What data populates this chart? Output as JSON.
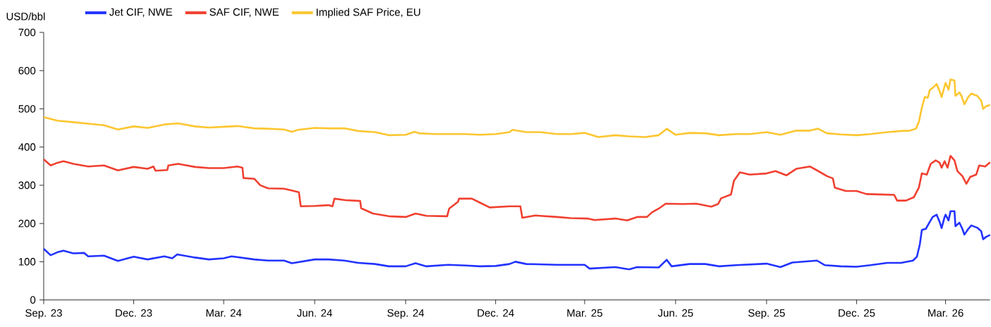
{
  "chart_data": {
    "type": "line",
    "ylabel": "USD/bbl",
    "legend": "top left",
    "xlim": [
      "2023-09-01",
      "2026-04-15"
    ],
    "ylim": [
      0,
      700
    ],
    "yticks": [
      0,
      100,
      200,
      300,
      400,
      500,
      600,
      700
    ],
    "xticks": [
      {
        "value": "2023-09-01",
        "label": "Sep. 23"
      },
      {
        "value": "2023-12-01",
        "label": "Dec. 23"
      },
      {
        "value": "2024-03-01",
        "label": "Mar. 24"
      },
      {
        "value": "2024-06-01",
        "label": "Jun. 24"
      },
      {
        "value": "2024-09-01",
        "label": "Sep. 24"
      },
      {
        "value": "2024-12-01",
        "label": "Dec. 24"
      },
      {
        "value": "2025-03-01",
        "label": "Mar. 25"
      },
      {
        "value": "2025-06-01",
        "label": "Jun. 25"
      },
      {
        "value": "2025-09-01",
        "label": "Sep. 25"
      },
      {
        "value": "2025-12-01",
        "label": "Dec. 25"
      },
      {
        "value": "2026-03-01",
        "label": "Mar. 26"
      }
    ],
    "series": [
      {
        "name": "Jet CIF, NWE",
        "color": "#2233ff",
        "x": [
          "2023-09-01",
          "2023-09-08",
          "2023-09-15",
          "2023-09-21",
          "2023-10-01",
          "2023-10-12",
          "2023-10-16",
          "2023-11-01",
          "2023-11-15",
          "2023-12-01",
          "2023-12-15",
          "2024-01-01",
          "2024-01-09",
          "2024-01-14",
          "2024-02-01",
          "2024-02-15",
          "2024-03-01",
          "2024-03-09",
          "2024-04-01",
          "2024-04-15",
          "2024-05-01",
          "2024-05-09",
          "2024-06-01",
          "2024-06-15",
          "2024-07-01",
          "2024-07-15",
          "2024-08-01",
          "2024-08-15",
          "2024-09-01",
          "2024-09-11",
          "2024-09-22",
          "2024-10-14",
          "2024-11-01",
          "2024-11-15",
          "2024-12-01",
          "2024-12-15",
          "2024-12-21",
          "2025-01-01",
          "2025-02-01",
          "2025-03-01",
          "2025-03-06",
          "2025-04-01",
          "2025-04-15",
          "2025-04-23",
          "2025-05-15",
          "2025-05-23",
          "2025-05-28",
          "2025-06-15",
          "2025-07-01",
          "2025-07-15",
          "2025-08-01",
          "2025-09-01",
          "2025-09-15",
          "2025-09-27",
          "2025-10-22",
          "2025-10-30",
          "2025-11-15",
          "2025-12-01",
          "2025-12-15",
          "2026-01-01",
          "2026-01-15",
          "2026-01-27",
          "2026-01-31",
          "2026-02-03",
          "2026-02-05",
          "2026-02-09",
          "2026-02-13",
          "2026-02-16",
          "2026-02-20",
          "2026-02-23",
          "2026-02-25",
          "2026-02-28",
          "2026-03-01",
          "2026-03-04",
          "2026-03-06",
          "2026-03-10",
          "2026-03-11",
          "2026-03-15",
          "2026-03-18",
          "2026-03-20",
          "2026-03-24",
          "2026-03-27",
          "2026-04-02",
          "2026-04-06",
          "2026-04-08",
          "2026-04-11",
          "2026-04-15"
        ],
        "values": [
          134,
          117,
          125,
          129,
          122,
          123,
          114,
          116,
          102,
          113,
          106,
          114,
          109,
          119,
          111,
          106,
          109,
          114,
          106,
          103,
          103,
          96,
          106,
          106,
          103,
          97,
          94,
          88,
          88,
          96,
          88,
          92,
          90,
          88,
          89,
          94,
          100,
          94,
          92,
          92,
          82,
          86,
          80,
          86,
          85,
          105,
          88,
          94,
          94,
          88,
          91,
          95,
          86,
          98,
          103,
          91,
          88,
          87,
          91,
          97,
          97,
          103,
          113,
          146,
          183,
          186,
          204,
          217,
          223,
          204,
          188,
          217,
          223,
          208,
          232,
          232,
          193,
          202,
          186,
          171,
          186,
          195,
          189,
          180,
          159,
          165,
          170
        ]
      },
      {
        "name": "SAF CIF, NWE",
        "color": "#f04030",
        "x": [
          "2023-09-01",
          "2023-09-08",
          "2023-09-15",
          "2023-09-21",
          "2023-10-01",
          "2023-10-16",
          "2023-11-01",
          "2023-11-15",
          "2023-12-01",
          "2023-12-15",
          "2023-12-21",
          "2023-12-23",
          "2024-01-04",
          "2024-01-05",
          "2024-01-15",
          "2024-02-01",
          "2024-02-15",
          "2024-03-01",
          "2024-03-15",
          "2024-03-20",
          "2024-03-21",
          "2024-04-01",
          "2024-04-07",
          "2024-04-15",
          "2024-05-01",
          "2024-05-11",
          "2024-05-16",
          "2024-05-18",
          "2024-06-01",
          "2024-06-15",
          "2024-06-19",
          "2024-06-21",
          "2024-07-02",
          "2024-07-17",
          "2024-07-18",
          "2024-07-30",
          "2024-08-15",
          "2024-09-01",
          "2024-09-11",
          "2024-09-22",
          "2024-10-13",
          "2024-10-15",
          "2024-10-24",
          "2024-10-25",
          "2024-11-07",
          "2024-11-14",
          "2024-11-25",
          "2024-12-15",
          "2024-12-26",
          "2024-12-28",
          "2025-01-10",
          "2025-02-01",
          "2025-02-15",
          "2025-03-04",
          "2025-03-11",
          "2025-04-01",
          "2025-04-13",
          "2025-04-23",
          "2025-05-03",
          "2025-05-08",
          "2025-05-15",
          "2025-05-22",
          "2025-06-08",
          "2025-06-22",
          "2025-07-07",
          "2025-07-14",
          "2025-07-17",
          "2025-07-27",
          "2025-07-30",
          "2025-08-05",
          "2025-08-15",
          "2025-09-01",
          "2025-09-10",
          "2025-09-21",
          "2025-10-01",
          "2025-10-15",
          "2025-10-22",
          "2025-11-01",
          "2025-11-07",
          "2025-11-09",
          "2025-11-20",
          "2025-12-01",
          "2025-12-11",
          "2025-12-24",
          "2026-01-08",
          "2026-01-11",
          "2026-01-20",
          "2026-01-28",
          "2026-02-02",
          "2026-02-05",
          "2026-02-10",
          "2026-02-14",
          "2026-02-19",
          "2026-02-23",
          "2026-02-25",
          "2026-02-28",
          "2026-03-03",
          "2026-03-06",
          "2026-03-10",
          "2026-03-13",
          "2026-03-18",
          "2026-03-22",
          "2026-03-26",
          "2026-04-01",
          "2026-04-04",
          "2026-04-10",
          "2026-04-15"
        ],
        "values": [
          368,
          352,
          359,
          363,
          356,
          349,
          352,
          339,
          348,
          343,
          349,
          338,
          340,
          352,
          356,
          348,
          345,
          345,
          349,
          346,
          319,
          317,
          300,
          292,
          291,
          285,
          282,
          245,
          246,
          248,
          245,
          265,
          261,
          259,
          240,
          226,
          219,
          217,
          226,
          220,
          219,
          239,
          257,
          265,
          265,
          256,
          242,
          245,
          245,
          215,
          221,
          217,
          214,
          213,
          209,
          213,
          208,
          217,
          217,
          229,
          239,
          252,
          251,
          252,
          244,
          251,
          266,
          276,
          312,
          334,
          328,
          331,
          337,
          326,
          343,
          349,
          339,
          324,
          318,
          294,
          285,
          285,
          277,
          276,
          275,
          260,
          260,
          269,
          294,
          331,
          328,
          356,
          365,
          359,
          346,
          363,
          346,
          377,
          365,
          337,
          324,
          304,
          322,
          328,
          352,
          349,
          360
        ]
      },
      {
        "name": "Implied SAF Price, EU",
        "color": "#fcc630",
        "x": [
          "2023-09-01",
          "2023-09-15",
          "2023-10-01",
          "2023-10-16",
          "2023-11-01",
          "2023-11-15",
          "2023-12-01",
          "2023-12-15",
          "2024-01-01",
          "2024-01-15",
          "2024-02-01",
          "2024-02-15",
          "2024-03-01",
          "2024-03-15",
          "2024-04-01",
          "2024-04-15",
          "2024-05-01",
          "2024-05-09",
          "2024-05-15",
          "2024-06-01",
          "2024-06-15",
          "2024-07-01",
          "2024-07-15",
          "2024-08-01",
          "2024-08-15",
          "2024-09-01",
          "2024-09-10",
          "2024-09-15",
          "2024-10-01",
          "2024-10-15",
          "2024-11-01",
          "2024-11-15",
          "2024-12-01",
          "2024-12-15",
          "2024-12-18",
          "2025-01-01",
          "2025-01-15",
          "2025-02-01",
          "2025-02-15",
          "2025-03-01",
          "2025-03-15",
          "2025-04-01",
          "2025-04-15",
          "2025-05-01",
          "2025-05-15",
          "2025-05-23",
          "2025-06-01",
          "2025-06-15",
          "2025-07-01",
          "2025-07-15",
          "2025-08-01",
          "2025-08-15",
          "2025-09-01",
          "2025-09-15",
          "2025-10-01",
          "2025-10-15",
          "2025-10-23",
          "2025-11-01",
          "2025-11-15",
          "2025-12-01",
          "2025-12-15",
          "2026-01-01",
          "2026-01-15",
          "2026-01-24",
          "2026-01-30",
          "2026-02-02",
          "2026-02-05",
          "2026-02-08",
          "2026-02-11",
          "2026-02-13",
          "2026-02-16",
          "2026-02-20",
          "2026-02-23",
          "2026-02-25",
          "2026-02-28",
          "2026-03-01",
          "2026-03-04",
          "2026-03-06",
          "2026-03-10",
          "2026-03-11",
          "2026-03-15",
          "2026-03-17",
          "2026-03-20",
          "2026-03-24",
          "2026-03-27",
          "2026-04-02",
          "2026-04-06",
          "2026-04-08",
          "2026-04-11",
          "2026-04-15"
        ],
        "values": [
          478,
          469,
          465,
          461,
          457,
          446,
          454,
          450,
          459,
          462,
          454,
          451,
          453,
          455,
          449,
          448,
          446,
          440,
          445,
          450,
          449,
          449,
          442,
          439,
          431,
          432,
          440,
          436,
          434,
          434,
          434,
          432,
          434,
          439,
          445,
          439,
          439,
          434,
          434,
          437,
          426,
          431,
          428,
          426,
          431,
          448,
          432,
          437,
          436,
          431,
          434,
          434,
          439,
          432,
          443,
          443,
          448,
          436,
          433,
          431,
          434,
          439,
          442,
          443,
          448,
          466,
          503,
          531,
          529,
          549,
          555,
          565,
          546,
          531,
          559,
          568,
          550,
          577,
          574,
          534,
          543,
          534,
          512,
          531,
          540,
          534,
          522,
          500,
          507,
          510
        ]
      }
    ]
  }
}
